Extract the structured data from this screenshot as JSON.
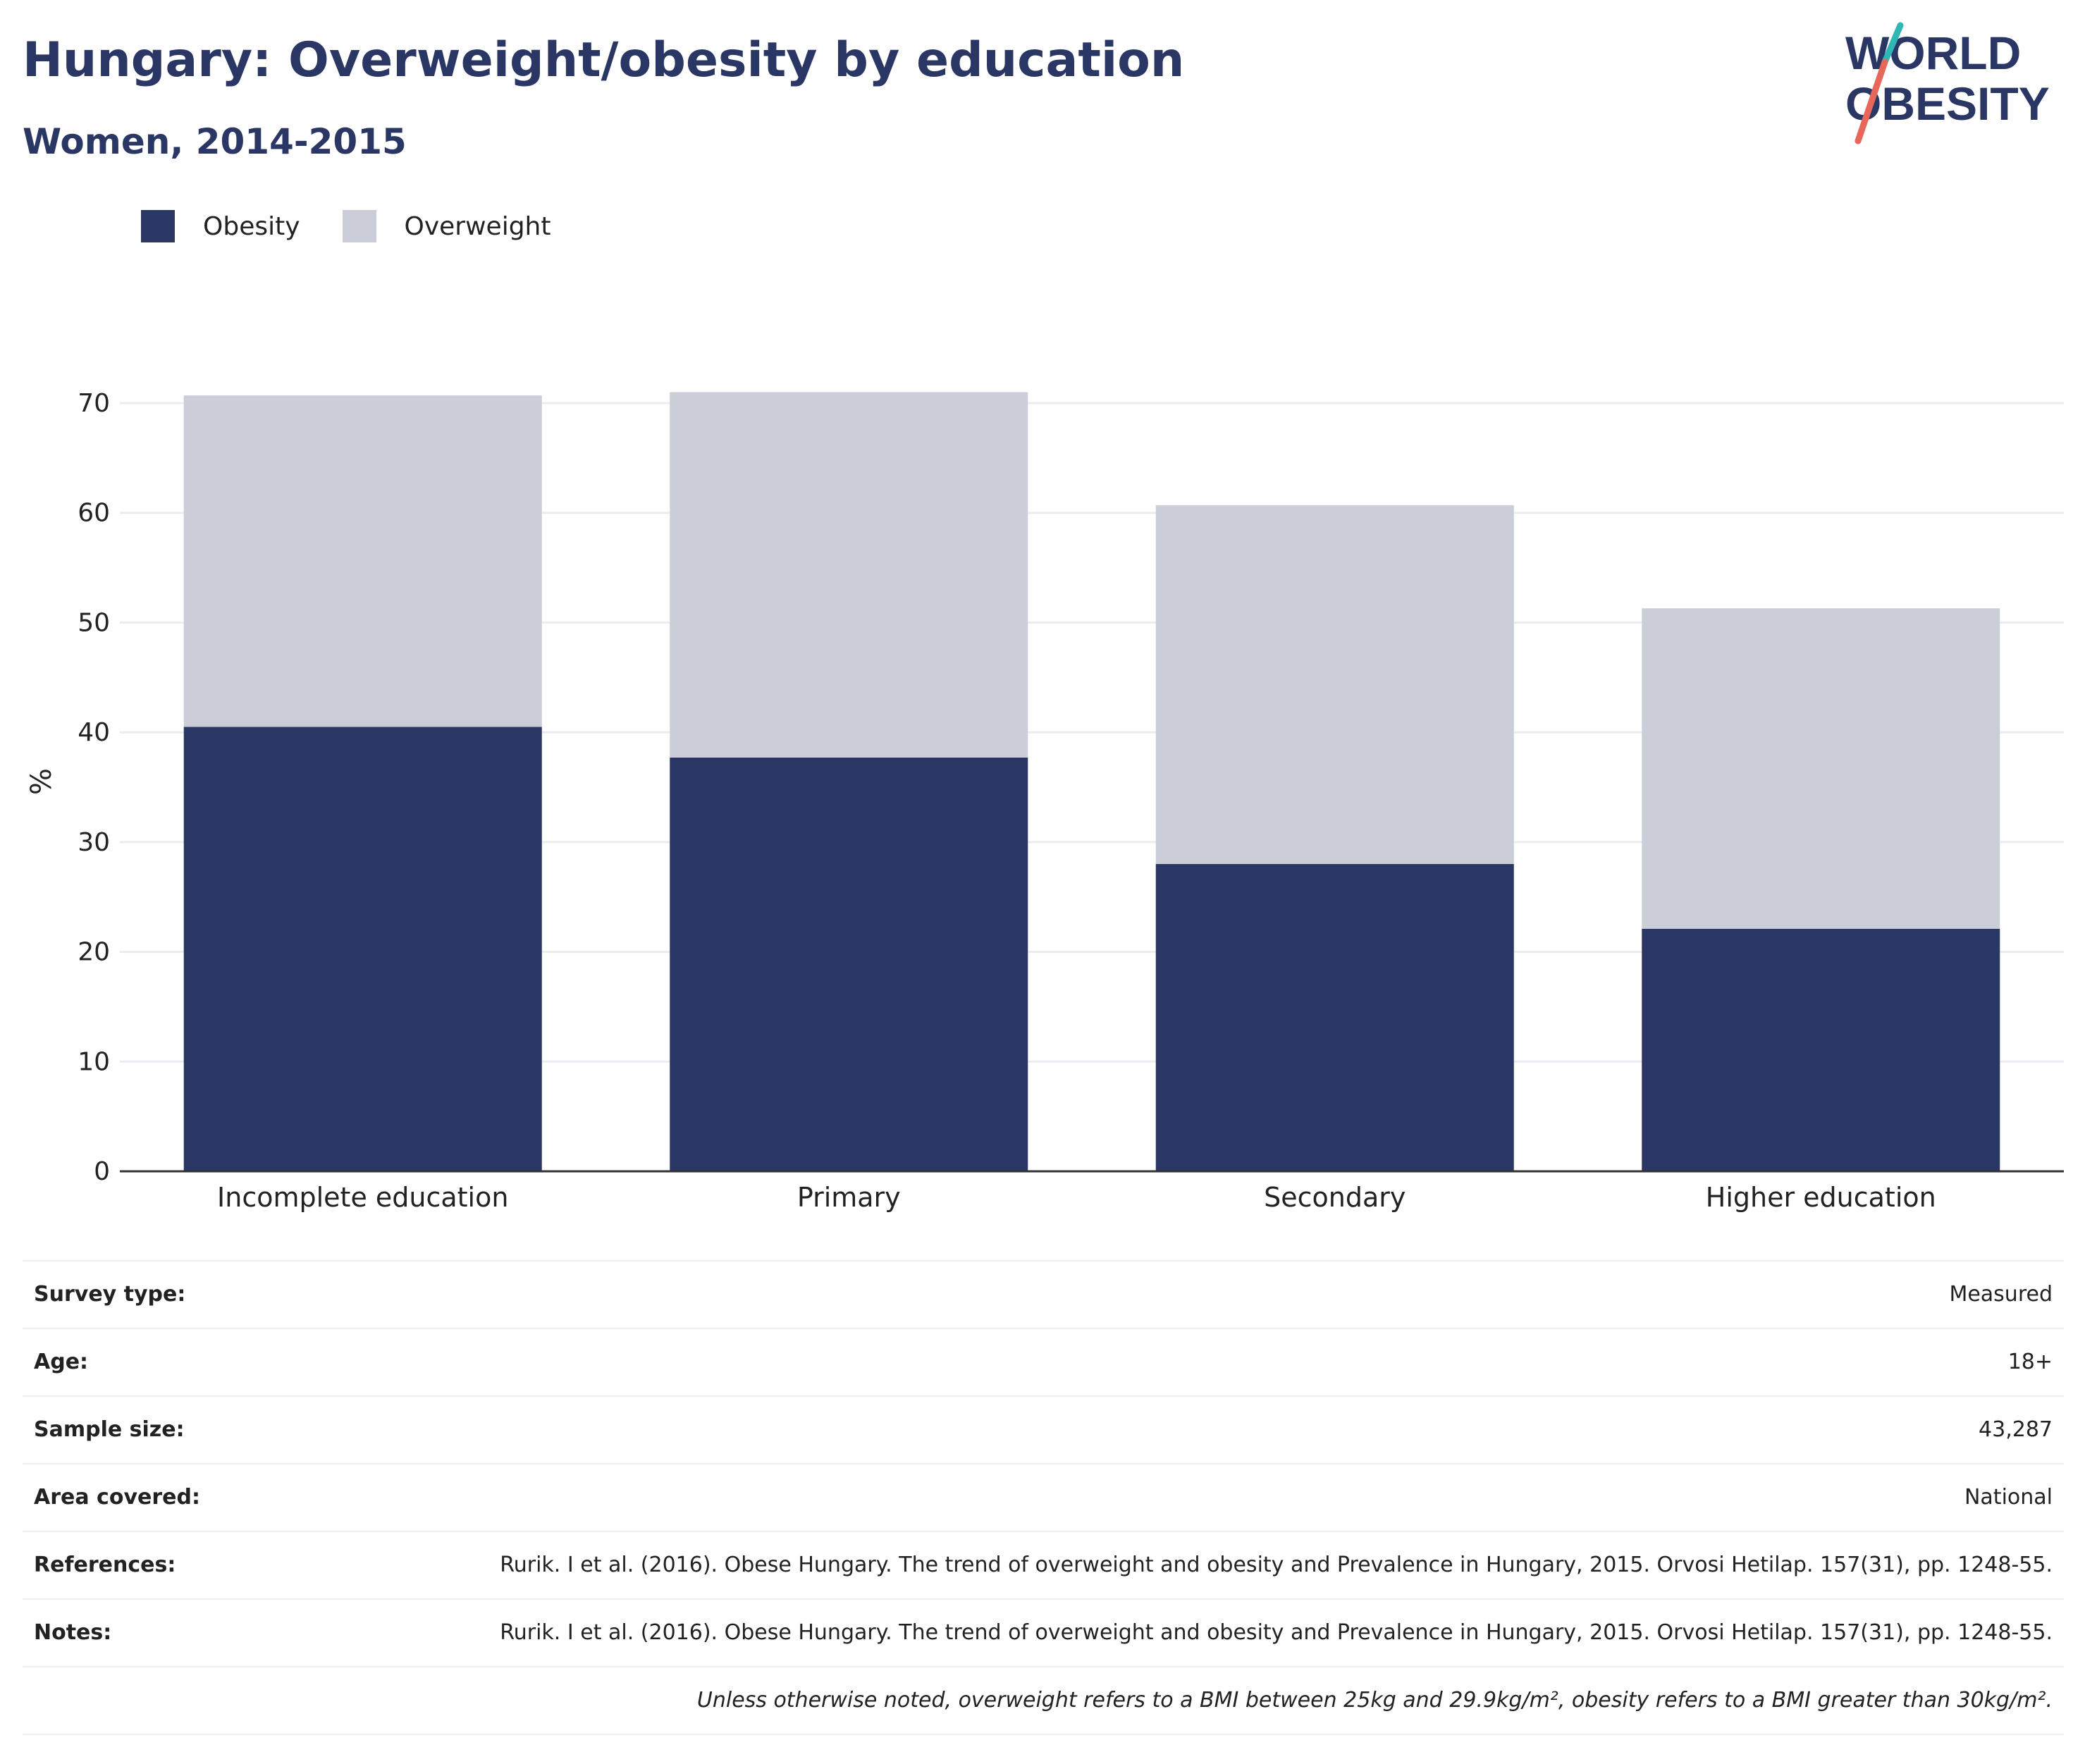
{
  "header": {
    "title": "Hungary: Overweight/obesity by education",
    "subtitle": "Women, 2014-2015"
  },
  "logo": {
    "line1": "WORLD",
    "line2": "OBESITY"
  },
  "colors": {
    "obesity": "#2a3664",
    "overweight": "#cbcdd8",
    "logo_teal": "#2fb7b5",
    "logo_coral": "#e8675a"
  },
  "chart_data": {
    "type": "bar",
    "stacked": true,
    "categories": [
      "Incomplete education",
      "Primary",
      "Secondary",
      "Higher education"
    ],
    "series": [
      {
        "name": "Obesity",
        "values": [
          40.5,
          37.7,
          28.0,
          22.1
        ]
      },
      {
        "name": "Overweight",
        "values": [
          30.2,
          33.3,
          32.7,
          29.2
        ]
      }
    ],
    "ylabel": "%",
    "xlabel": "",
    "ylim": [
      0,
      70
    ],
    "yticks": [
      0,
      10,
      20,
      30,
      40,
      50,
      60,
      70
    ],
    "grid": true,
    "legend": "top-left"
  },
  "meta": {
    "rows": [
      {
        "key": "Survey type:",
        "value": "Measured"
      },
      {
        "key": "Age:",
        "value": "18+"
      },
      {
        "key": "Sample size:",
        "value": "43,287"
      },
      {
        "key": "Area covered:",
        "value": "National"
      },
      {
        "key": "References:",
        "value": "Rurik. I et al. (2016). Obese Hungary. The trend of overweight and obesity and Prevalence in Hungary, 2015. Orvosi Hetilap. 157(31), pp. 1248-55."
      },
      {
        "key": "Notes:",
        "value": "Rurik. I et al. (2016). Obese Hungary. The trend of overweight and obesity and Prevalence in Hungary, 2015. Orvosi Hetilap. 157(31), pp. 1248-55."
      }
    ],
    "footnote": "Unless otherwise noted, overweight refers to a BMI between 25kg and 29.9kg/m², obesity refers to a BMI greater than 30kg/m²."
  }
}
